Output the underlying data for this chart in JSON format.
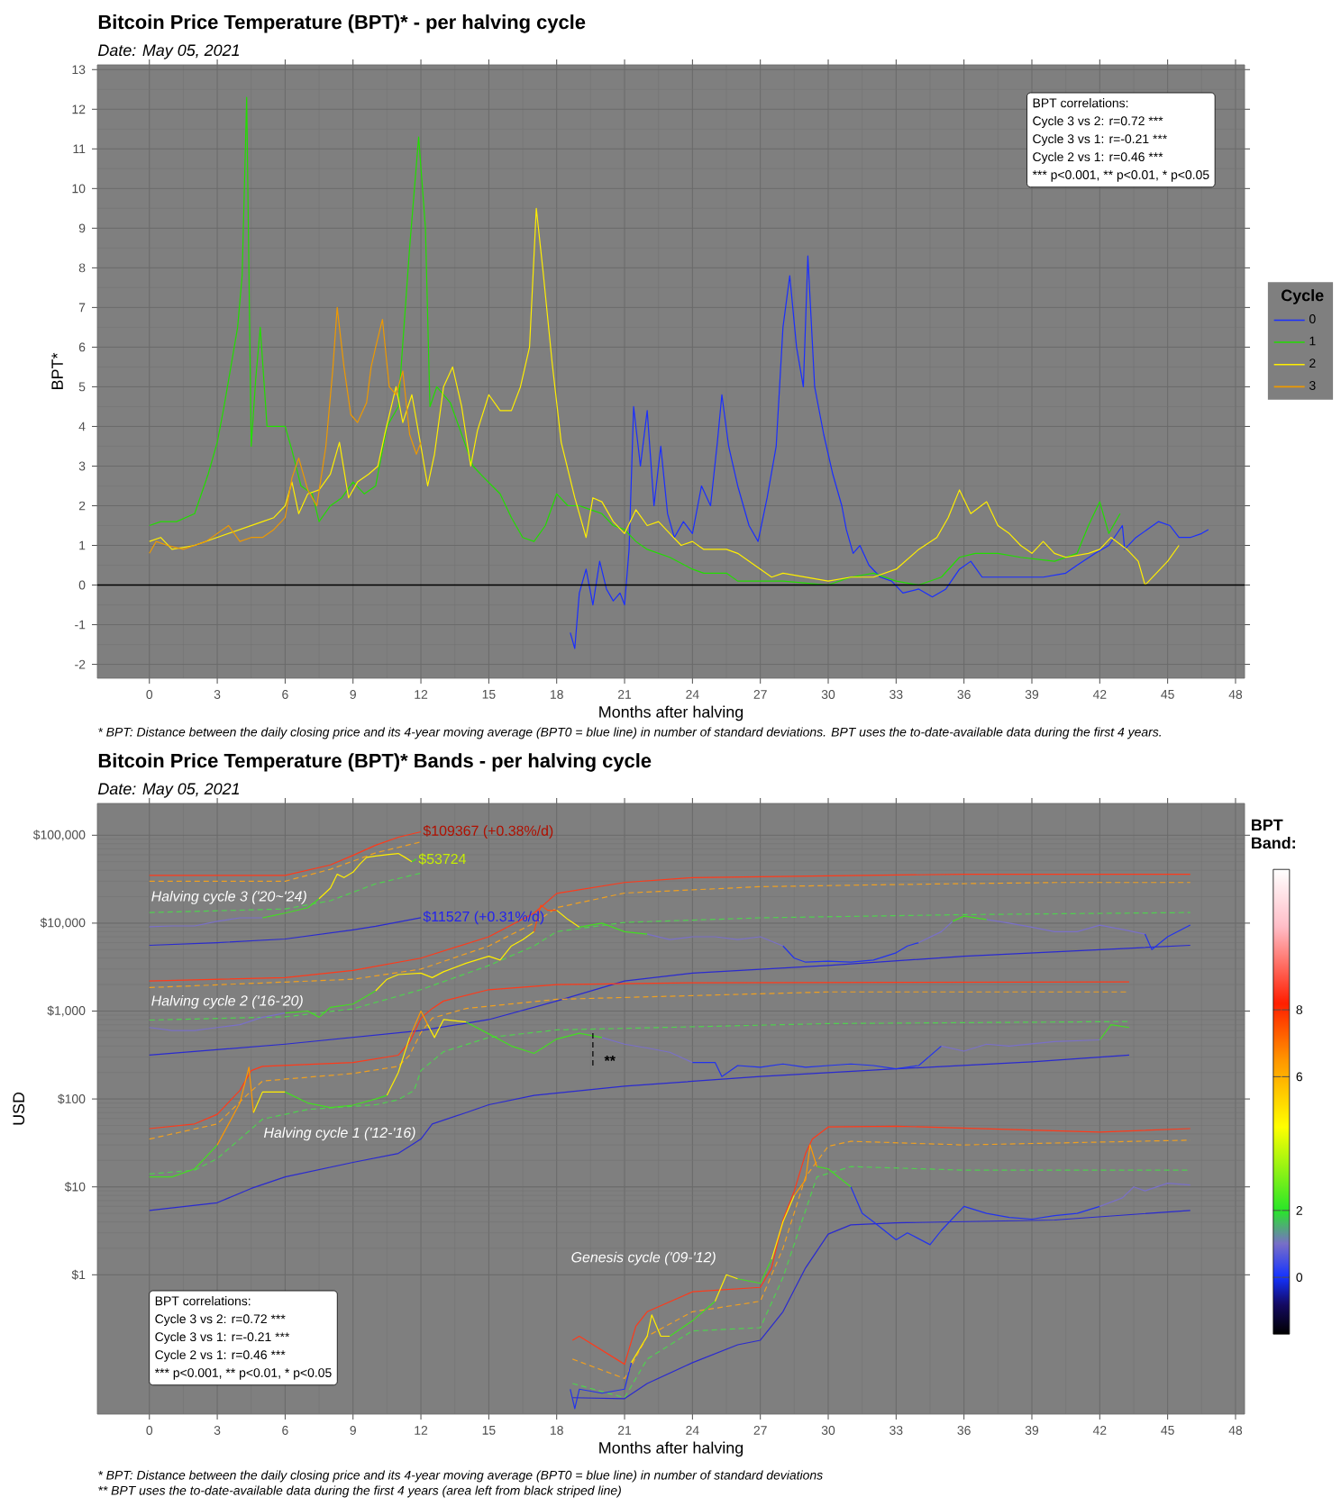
{
  "chart_data": [
    {
      "type": "line",
      "title": "Bitcoin Price Temperature (BPT)* - per halving cycle",
      "subtitle": "Date: May 05, 2021",
      "xlabel": "Months after halving",
      "ylabel": "BPT*",
      "legend_title": "Cycle",
      "legend": "right",
      "grid": true,
      "xlim": [
        -2.3,
        48.4
      ],
      "ylim": [
        -2.35,
        13.12
      ],
      "xticks": [
        0,
        3,
        6,
        9,
        12,
        15,
        18,
        21,
        24,
        27,
        30,
        33,
        36,
        39,
        42,
        45,
        48
      ],
      "yticks": [
        -2,
        -1,
        0,
        1,
        2,
        3,
        4,
        5,
        6,
        7,
        8,
        9,
        10,
        11,
        12,
        13
      ],
      "ref_lines": [
        {
          "axis": "y",
          "value": 0,
          "color": "#000000"
        }
      ],
      "annotations": [
        "BPT correlations:",
        "Cycle 3 vs 2: r=0.72 ***",
        "Cycle 3 vs 1: r=-0.21 ***",
        "Cycle 2 vs 1: r=0.46 ***",
        "*** p<0.001, ** p<0.01, * p<0.05",
        "* BPT: Distance between the daily closing price and its 4-year moving average (BPT0 = blue line) in number of standard deviations. BPT uses the to-date-available data during the first 4 years."
      ],
      "series": [
        {
          "name": "0",
          "color": "#1a2eff",
          "x": [
            18.6,
            18.8,
            19.0,
            19.3,
            19.6,
            19.9,
            20.2,
            20.5,
            20.8,
            21.0,
            21.2,
            21.4,
            21.7,
            22.0,
            22.3,
            22.6,
            22.9,
            23.2,
            23.6,
            24.0,
            24.4,
            24.8,
            25.1,
            25.3,
            25.6,
            26.0,
            26.5,
            26.9,
            27.3,
            27.7,
            28.0,
            28.3,
            28.6,
            28.9,
            29.1,
            29.4,
            29.8,
            30.2,
            30.6,
            30.8,
            31.1,
            31.4,
            31.8,
            32.3,
            32.8,
            33.3,
            34.0,
            34.6,
            35.2,
            35.8,
            36.3,
            36.8,
            37.5,
            38.5,
            39.5,
            40.5,
            41.0,
            41.8,
            42.4,
            43.0,
            43.1,
            43.6,
            44.1,
            44.6,
            45.1,
            45.5,
            46.0,
            46.5,
            46.8
          ],
          "values": [
            -1.2,
            -1.6,
            -0.2,
            0.4,
            -0.5,
            0.6,
            -0.1,
            -0.4,
            -0.2,
            -0.5,
            0.9,
            4.5,
            3.0,
            4.4,
            2.0,
            3.5,
            1.8,
            1.2,
            1.6,
            1.3,
            2.5,
            2.0,
            3.6,
            4.8,
            3.5,
            2.5,
            1.5,
            1.1,
            2.2,
            3.5,
            6.5,
            7.8,
            6.0,
            5.0,
            8.3,
            5.0,
            3.8,
            2.8,
            2.0,
            1.4,
            0.8,
            1.0,
            0.5,
            0.2,
            0.1,
            -0.2,
            -0.1,
            -0.3,
            -0.1,
            0.4,
            0.6,
            0.2,
            0.2,
            0.2,
            0.2,
            0.3,
            0.5,
            0.8,
            1.0,
            1.5,
            0.9,
            1.2,
            1.4,
            1.6,
            1.5,
            1.2,
            1.2,
            1.3,
            1.4
          ]
        },
        {
          "name": "1",
          "color": "#22dd00",
          "x": [
            0,
            0.5,
            1.2,
            2.0,
            2.6,
            3.0,
            3.3,
            3.6,
            3.9,
            4.1,
            4.3,
            4.5,
            4.7,
            4.9,
            5.2,
            5.6,
            6.0,
            6.3,
            6.7,
            7.2,
            7.5,
            8.0,
            8.5,
            9.0,
            9.5,
            10.0,
            10.5,
            11.0,
            11.5,
            11.9,
            12.2,
            12.4,
            12.7,
            13.3,
            13.8,
            14.3,
            14.8,
            15.5,
            16.0,
            16.5,
            17.0,
            17.5,
            18.0,
            18.5,
            19.0,
            19.5,
            20.0,
            20.5,
            21.0,
            21.5,
            22.0,
            23.0,
            24.0,
            24.5,
            25.5,
            26.0,
            27.0,
            28.0,
            29.0,
            30.0,
            31.0,
            32.0,
            33.0,
            34.0,
            35.0,
            35.8,
            36.5,
            37.5,
            38.5,
            40.0,
            41.0,
            41.5,
            42.0,
            42.4,
            42.9
          ],
          "values": [
            1.5,
            1.6,
            1.6,
            1.8,
            2.8,
            3.6,
            4.5,
            5.5,
            6.5,
            7.8,
            12.3,
            3.5,
            5.2,
            6.5,
            4.0,
            4.0,
            4.0,
            3.4,
            2.5,
            2.3,
            1.6,
            2.0,
            2.2,
            2.6,
            2.3,
            2.5,
            4.0,
            4.5,
            8.5,
            11.3,
            9.0,
            4.5,
            5.0,
            4.6,
            3.8,
            3.0,
            2.7,
            2.3,
            1.7,
            1.2,
            1.1,
            1.5,
            2.3,
            2.0,
            2.0,
            1.9,
            1.8,
            1.5,
            1.4,
            1.1,
            0.9,
            0.7,
            0.4,
            0.3,
            0.3,
            0.1,
            0.1,
            0.1,
            0.05,
            0.0,
            0.2,
            0.3,
            0.1,
            0.0,
            0.2,
            0.7,
            0.8,
            0.8,
            0.7,
            0.6,
            0.8,
            1.5,
            2.1,
            1.3,
            1.8
          ]
        },
        {
          "name": "2",
          "color": "#ffee00",
          "x": [
            0,
            0.5,
            1.0,
            2.0,
            3.0,
            4.0,
            5.0,
            5.5,
            6.0,
            6.3,
            6.6,
            7.0,
            7.5,
            8.0,
            8.4,
            8.8,
            9.2,
            9.7,
            10.1,
            10.4,
            10.9,
            11.2,
            11.6,
            12.0,
            12.3,
            12.6,
            13.0,
            13.4,
            13.8,
            14.2,
            14.5,
            15.0,
            15.5,
            16.0,
            16.4,
            16.8,
            17.1,
            17.4,
            17.8,
            18.2,
            18.5,
            18.8,
            19.3,
            19.6,
            20.0,
            20.5,
            21.0,
            21.5,
            22.0,
            22.5,
            23.0,
            23.5,
            24.0,
            24.5,
            25.5,
            26.0,
            26.5,
            27.0,
            27.5,
            28.0,
            29.0,
            30.0,
            31.0,
            32.0,
            33.0,
            34.0,
            34.8,
            35.3,
            35.8,
            36.3,
            37.0,
            37.5,
            38.0,
            38.5,
            39.0,
            39.5,
            40.0,
            40.5,
            41.5,
            42.0,
            42.5,
            43.2,
            43.7,
            44.0,
            44.5,
            45.0,
            45.5
          ],
          "values": [
            1.1,
            1.2,
            0.9,
            1.0,
            1.2,
            1.4,
            1.6,
            1.7,
            2.0,
            2.6,
            1.8,
            2.3,
            2.4,
            2.8,
            3.6,
            2.2,
            2.6,
            2.8,
            3.0,
            3.8,
            5.0,
            4.1,
            4.8,
            3.5,
            2.5,
            3.3,
            5.0,
            5.5,
            4.5,
            3.0,
            3.9,
            4.8,
            4.4,
            4.4,
            5.0,
            6.0,
            9.5,
            7.9,
            5.6,
            3.6,
            2.9,
            2.2,
            1.2,
            2.2,
            2.1,
            1.6,
            1.3,
            1.9,
            1.5,
            1.6,
            1.3,
            1.0,
            1.1,
            0.9,
            0.9,
            0.8,
            0.6,
            0.4,
            0.2,
            0.3,
            0.2,
            0.1,
            0.2,
            0.2,
            0.4,
            0.9,
            1.2,
            1.7,
            2.4,
            1.8,
            2.1,
            1.5,
            1.3,
            1.0,
            0.8,
            1.1,
            0.8,
            0.7,
            0.8,
            0.9,
            1.2,
            0.9,
            0.6,
            0.0,
            0.3,
            0.6,
            1.0
          ]
        },
        {
          "name": "3",
          "color": "#ee9900",
          "x": [
            0,
            0.3,
            0.8,
            1.5,
            2.0,
            2.5,
            3.0,
            3.5,
            4.0,
            4.5,
            5.0,
            5.5,
            6.0,
            6.3,
            6.6,
            7.0,
            7.4,
            7.8,
            8.1,
            8.3,
            8.6,
            8.9,
            9.2,
            9.6,
            9.8,
            10.0,
            10.3,
            10.6,
            10.9,
            11.2,
            11.5,
            11.8,
            12.0
          ],
          "values": [
            0.8,
            1.1,
            1.0,
            0.9,
            1.0,
            1.1,
            1.3,
            1.5,
            1.1,
            1.2,
            1.2,
            1.4,
            1.7,
            2.7,
            3.2,
            2.4,
            2.0,
            3.5,
            5.4,
            7.0,
            5.5,
            4.3,
            4.1,
            4.6,
            5.5,
            6.0,
            6.7,
            5.0,
            4.8,
            5.4,
            3.8,
            3.3,
            3.6
          ]
        }
      ]
    },
    {
      "type": "line",
      "title": "Bitcoin Price Temperature (BPT)* Bands - per halving cycle",
      "subtitle": "Date: May 05, 2021",
      "xlabel": "Months after halving",
      "ylabel": "USD",
      "clabel": "BPT Band:",
      "clim": [
        -1.7,
        12.2
      ],
      "cticks": [
        0,
        2,
        6,
        8
      ],
      "log": "y",
      "grid": true,
      "xlim": [
        -2.3,
        48.4
      ],
      "ylim": [
        0.026,
        230000
      ],
      "xticks": [
        0,
        3,
        6,
        9,
        12,
        15,
        18,
        21,
        24,
        27,
        30,
        33,
        36,
        39,
        42,
        45,
        48
      ],
      "yticks": [
        {
          "value": 1,
          "label": "$1"
        },
        {
          "value": 10,
          "label": "$10"
        },
        {
          "value": 100,
          "label": "$100"
        },
        {
          "value": 1000,
          "label": "$1,000"
        },
        {
          "value": 10000,
          "label": "$10,000"
        },
        {
          "value": 100000,
          "label": "$100,000"
        }
      ],
      "annotations": [
        "$109367 (+0.38%/d)",
        "$53724",
        "$11527 (+0.31%/d)",
        "Halving cycle 3 ('20~'24)",
        "Halving cycle 2 ('16-'20)",
        "Halving cycle 1 ('12-'16)",
        "Genesis cycle ('09-'12)",
        "**",
        "BPT correlations:",
        "Cycle 3 vs 2: r=0.72 ***",
        "Cycle 3 vs 1: r=-0.21 ***",
        "Cycle 2 vs 1: r=0.46 ***",
        "*** p<0.001, ** p<0.01, * p<0.05",
        "* BPT: Distance between the daily closing price and its 4-year moving average (BPT0 = blue line) in number of standard deviations",
        "** BPT uses the to-date-available data during the first 4 years (area left from black striped line)"
      ],
      "series": [
        {
          "color": "#ff3a1a",
          "x": [
            0,
            6,
            8,
            9,
            10,
            11,
            12
          ],
          "values": [
            35000,
            35000,
            46000,
            59000,
            77000,
            95000,
            109367
          ]
        },
        {
          "color": "#f0a020",
          "line_style": "dashed",
          "x": [
            0,
            6,
            8,
            10,
            12
          ],
          "values": [
            30000,
            30000,
            41000,
            63000,
            84000
          ]
        },
        {
          "color": "#50d050",
          "line_style": "dashed",
          "x": [
            0,
            6,
            8,
            10,
            12
          ],
          "values": [
            13200,
            14500,
            18000,
            28000,
            37000
          ]
        },
        {
          "color": "#2a2ad0",
          "x": [
            0,
            3,
            6,
            9,
            10,
            12
          ],
          "values": [
            5600,
            6000,
            6600,
            8400,
            9200,
            11527
          ]
        },
        {
          "color": "#7a70c8",
          "x": [
            0,
            1,
            2,
            3,
            4,
            5
          ],
          "values": [
            9100,
            9300,
            9300,
            10500,
            11500,
            11500
          ]
        },
        {
          "color": "#44dd22",
          "x": [
            5,
            6,
            7,
            7.5
          ],
          "values": [
            11500,
            13000,
            15000,
            19000
          ]
        },
        {
          "color": "#ffee00",
          "x": [
            7.5,
            8,
            8.3,
            8.6,
            9,
            9.3,
            9.6,
            10,
            10.5,
            11,
            11.3,
            11.6
          ],
          "values": [
            19000,
            25000,
            36000,
            33000,
            38000,
            47000,
            56000,
            58000,
            60000,
            62000,
            56000,
            50000
          ]
        },
        {
          "color": "#44dd22",
          "x": [
            11.6,
            11.8
          ],
          "values": [
            50000,
            53724
          ]
        },
        {
          "color": "#ff3a1a",
          "x": [
            0,
            6,
            9,
            12,
            15,
            17,
            18,
            21,
            24,
            30,
            36,
            46
          ],
          "values": [
            2200,
            2400,
            2900,
            4000,
            7000,
            13000,
            21800,
            29000,
            33000,
            34500,
            36000,
            36000
          ]
        },
        {
          "color": "#f0a020",
          "line_style": "dashed",
          "x": [
            0,
            9,
            12,
            15,
            17,
            18,
            21,
            27,
            33,
            40,
            46
          ],
          "values": [
            1850,
            2300,
            3000,
            5500,
            10000,
            15000,
            22000,
            26000,
            27500,
            29000,
            29000
          ]
        },
        {
          "color": "#50d050",
          "line_style": "dashed",
          "x": [
            0,
            6,
            9,
            12,
            15,
            17,
            18,
            21,
            27,
            36,
            46
          ],
          "values": [
            790,
            860,
            1060,
            1750,
            3300,
            5500,
            8000,
            10200,
            11500,
            12500,
            13200
          ]
        },
        {
          "color": "#2a2ad0",
          "x": [
            0,
            6,
            12,
            15,
            18,
            21,
            24,
            30,
            36,
            42,
            46
          ],
          "values": [
            315,
            420,
            600,
            800,
            1300,
            2200,
            2700,
            3300,
            4200,
            5000,
            5600
          ]
        },
        {
          "color": "#7a70c8",
          "x": [
            0,
            1,
            2,
            3,
            4,
            5,
            6
          ],
          "values": [
            650,
            600,
            600,
            650,
            700,
            850,
            950
          ]
        },
        {
          "color": "#44dd22",
          "x": [
            6,
            7,
            7.5,
            8,
            9,
            10
          ],
          "values": [
            950,
            1000,
            850,
            1100,
            1200,
            1700
          ]
        },
        {
          "color": "#ffee00",
          "x": [
            10,
            10.5,
            11,
            12,
            12.5,
            13,
            14,
            15,
            15.5,
            16,
            16.5,
            17
          ],
          "values": [
            1700,
            2300,
            2600,
            2700,
            2400,
            2800,
            3500,
            4200,
            3800,
            5500,
            6500,
            8000
          ]
        },
        {
          "color": "#ff4a10",
          "x": [
            17,
            17.3,
            17.6,
            18
          ],
          "values": [
            8000,
            16000,
            14000,
            14000
          ]
        },
        {
          "color": "#ffee00",
          "x": [
            18,
            18.5,
            19
          ],
          "values": [
            14000,
            11000,
            9000
          ]
        },
        {
          "color": "#44dd22",
          "x": [
            19,
            20,
            21,
            22
          ],
          "values": [
            9000,
            10000,
            8000,
            7500
          ]
        },
        {
          "color": "#7a70c8",
          "x": [
            22,
            23,
            24,
            25,
            26,
            27,
            28
          ],
          "values": [
            7500,
            6500,
            7000,
            7000,
            6500,
            7000,
            5500
          ]
        },
        {
          "color": "#2233ee",
          "x": [
            28,
            28.5,
            29,
            30,
            31,
            32,
            33,
            33.5,
            34
          ],
          "values": [
            5500,
            4000,
            3600,
            3700,
            3600,
            3800,
            4600,
            5500,
            6000
          ]
        },
        {
          "color": "#7a70c8",
          "x": [
            34,
            35,
            35.5
          ],
          "values": [
            6000,
            8000,
            10500
          ]
        },
        {
          "color": "#44dd22",
          "x": [
            35.5,
            36,
            37
          ],
          "values": [
            10500,
            12000,
            11000
          ]
        },
        {
          "color": "#7a70c8",
          "x": [
            37,
            38,
            39,
            40,
            41,
            42,
            43,
            44
          ],
          "values": [
            11000,
            10000,
            9000,
            8000,
            8000,
            9500,
            8500,
            7500
          ]
        },
        {
          "color": "#2233ee",
          "x": [
            44,
            44.3,
            45,
            46
          ],
          "values": [
            7500,
            5000,
            7000,
            9500
          ]
        },
        {
          "color": "#ff3a1a",
          "x": [
            0,
            2,
            3,
            4,
            4.5,
            5,
            9,
            11,
            11.5,
            12,
            12.5,
            13,
            15,
            18,
            24,
            43.3
          ],
          "values": [
            46,
            52,
            67,
            125,
            210,
            235,
            260,
            315,
            440,
            830,
            1070,
            1300,
            1750,
            2000,
            2100,
            2150
          ]
        },
        {
          "color": "#f0a020",
          "line_style": "dashed",
          "x": [
            0,
            3,
            4.3,
            5,
            9,
            11,
            11.5,
            12,
            12.5,
            14,
            18,
            30,
            43.3
          ],
          "values": [
            35,
            52,
            110,
            160,
            195,
            235,
            315,
            570,
            830,
            1070,
            1360,
            1650,
            1650
          ]
        },
        {
          "color": "#50d050",
          "line_style": "dashed",
          "x": [
            0,
            2,
            3,
            4,
            5,
            7,
            10,
            11,
            11.7,
            12,
            13,
            15,
            18,
            30,
            43.3
          ],
          "values": [
            14,
            15.5,
            21,
            35,
            59,
            76,
            86,
            98,
            125,
            210,
            345,
            500,
            610,
            720,
            760
          ]
        },
        {
          "color": "#2a2ad0",
          "x": [
            0,
            3,
            4.5,
            6,
            9,
            11,
            12,
            12.5,
            14,
            15,
            17,
            21,
            27,
            33,
            39,
            43.3
          ],
          "values": [
            5.4,
            6.6,
            9.6,
            13,
            19,
            24,
            35,
            52,
            70,
            86,
            110,
            140,
            180,
            220,
            265,
            315
          ]
        },
        {
          "color": "#44dd22",
          "x": [
            0,
            1,
            2,
            3
          ],
          "values": [
            13,
            13,
            16,
            30
          ]
        },
        {
          "color": "#ff9900",
          "x": [
            3,
            4,
            4.4,
            4.6
          ],
          "values": [
            30,
            90,
            230,
            70
          ]
        },
        {
          "color": "#ffee00",
          "x": [
            4.6,
            5,
            6
          ],
          "values": [
            70,
            120,
            120
          ]
        },
        {
          "color": "#44dd22",
          "x": [
            6,
            7,
            8,
            9,
            10,
            10.5
          ],
          "values": [
            120,
            90,
            80,
            85,
            100,
            110
          ]
        },
        {
          "color": "#ffee00",
          "x": [
            10.5,
            11,
            11.5
          ],
          "values": [
            110,
            200,
            500
          ]
        },
        {
          "color": "#ff9900",
          "x": [
            11.5,
            12,
            12.3
          ],
          "values": [
            500,
            1000,
            700
          ]
        },
        {
          "color": "#ffee00",
          "x": [
            12.3,
            12.6,
            13,
            14
          ],
          "values": [
            700,
            500,
            800,
            750
          ]
        },
        {
          "color": "#44dd22",
          "x": [
            14,
            15,
            16,
            17,
            18,
            19,
            20
          ],
          "values": [
            750,
            550,
            400,
            330,
            480,
            560,
            500
          ]
        },
        {
          "color": "#7a70c8",
          "x": [
            20,
            21,
            22,
            23,
            24
          ],
          "values": [
            500,
            420,
            380,
            340,
            260
          ]
        },
        {
          "color": "#2233ee",
          "x": [
            24,
            25,
            25.3,
            26,
            27,
            28,
            29,
            30,
            31,
            32,
            33,
            34,
            35
          ],
          "values": [
            260,
            260,
            180,
            240,
            230,
            250,
            230,
            240,
            250,
            240,
            220,
            240,
            400
          ]
        },
        {
          "color": "#7a70c8",
          "x": [
            35,
            36,
            37,
            38,
            40,
            42
          ],
          "values": [
            400,
            350,
            420,
            400,
            450,
            470
          ]
        },
        {
          "color": "#44dd22",
          "x": [
            42,
            42.5,
            43.3
          ],
          "values": [
            470,
            700,
            650
          ]
        },
        {
          "color": "#ff3a1a",
          "x": [
            18.7,
            19,
            21,
            21.5,
            22,
            24,
            27,
            27.5,
            28,
            28.5,
            29,
            29.3,
            30,
            33,
            42,
            46
          ],
          "values": [
            0.18,
            0.2,
            0.096,
            0.26,
            0.38,
            0.64,
            0.72,
            1.2,
            4.2,
            9,
            24,
            35,
            48,
            49,
            42,
            46
          ]
        },
        {
          "color": "#f0a020",
          "line_style": "dashed",
          "x": [
            18.7,
            21,
            22,
            24,
            27,
            28,
            29,
            30,
            31,
            36,
            46
          ],
          "values": [
            0.11,
            0.066,
            0.2,
            0.38,
            0.5,
            2,
            13,
            29,
            33,
            30,
            34
          ]
        },
        {
          "color": "#50d050",
          "line_style": "dashed",
          "x": [
            18.7,
            21,
            22,
            24,
            27,
            28,
            29,
            29.5,
            31,
            36,
            46
          ],
          "values": [
            0.058,
            0.04,
            0.11,
            0.23,
            0.25,
            0.93,
            5.4,
            13,
            17,
            15.5,
            15.5
          ]
        },
        {
          "color": "#2a2ad0",
          "x": [
            18.7,
            21,
            22,
            24,
            26,
            27,
            28,
            29,
            30,
            31,
            33,
            40,
            46
          ],
          "values": [
            0.04,
            0.039,
            0.058,
            0.1,
            0.16,
            0.18,
            0.38,
            1.2,
            2.9,
            3.7,
            3.9,
            4.2,
            5.4
          ]
        },
        {
          "color": "#2233ee",
          "x": [
            18.6,
            18.8,
            19,
            20,
            21,
            21.3
          ],
          "values": [
            0.05,
            0.03,
            0.05,
            0.045,
            0.05,
            0.1
          ]
        },
        {
          "color": "#ffee00",
          "x": [
            21.3,
            22,
            22.2,
            22.6,
            23
          ],
          "values": [
            0.1,
            0.2,
            0.35,
            0.2,
            0.2
          ]
        },
        {
          "color": "#44dd22",
          "x": [
            23,
            24,
            25
          ],
          "values": [
            0.2,
            0.3,
            0.5
          ]
        },
        {
          "color": "#ffee00",
          "x": [
            25,
            25.5,
            26
          ],
          "values": [
            0.5,
            1.0,
            0.9
          ]
        },
        {
          "color": "#44dd22",
          "x": [
            26,
            27,
            27.5
          ],
          "values": [
            0.9,
            0.8,
            1.5
          ]
        },
        {
          "color": "#ffee00",
          "x": [
            27.5,
            28,
            28.5
          ],
          "values": [
            1.5,
            4,
            8
          ]
        },
        {
          "color": "#ff9900",
          "x": [
            28.5,
            29,
            29.2,
            29.5
          ],
          "values": [
            8,
            12,
            30,
            17
          ]
        },
        {
          "color": "#44dd22",
          "x": [
            29.5,
            30,
            31
          ],
          "values": [
            17,
            16,
            10
          ]
        },
        {
          "color": "#2233ee",
          "x": [
            31,
            31.5,
            32,
            33,
            33.5,
            34.5,
            35,
            36,
            37,
            38,
            39,
            40,
            41,
            42
          ],
          "values": [
            10,
            5,
            4,
            2.5,
            3,
            2.2,
            3.2,
            6,
            5,
            4.5,
            4.3,
            4.7,
            5,
            6
          ]
        },
        {
          "color": "#7a70c8",
          "x": [
            42,
            43,
            43.5,
            44,
            45,
            46
          ],
          "values": [
            6,
            7.5,
            10,
            9,
            11,
            10.5
          ]
        },
        {
          "color": "#000000",
          "line_style": "dashed",
          "x": [
            19.6,
            19.6
          ],
          "values": [
            560,
            230
          ]
        }
      ]
    }
  ]
}
